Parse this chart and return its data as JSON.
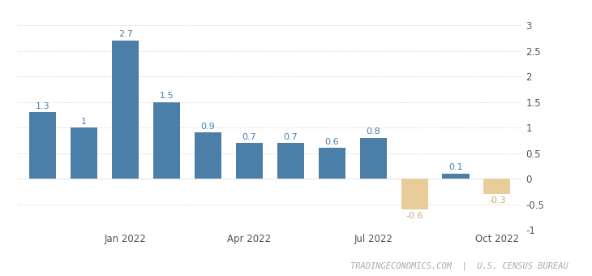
{
  "values": [
    1.3,
    1.0,
    2.7,
    1.5,
    0.9,
    0.7,
    0.7,
    0.6,
    0.8,
    -0.6,
    0.1,
    -0.3
  ],
  "bar_colors": [
    "#4c7fa8",
    "#4c7fa8",
    "#4c7fa8",
    "#4c7fa8",
    "#4c7fa8",
    "#4c7fa8",
    "#4c7fa8",
    "#4c7fa8",
    "#4c7fa8",
    "#e8cc99",
    "#4c7fa8",
    "#e8cc99"
  ],
  "x_tick_positions": [
    2,
    5,
    8,
    11
  ],
  "x_tick_labels": [
    "Jan 2022",
    "Apr 2022",
    "Jul 2022",
    "Oct 2022"
  ],
  "ylim": [
    -1.0,
    3.2
  ],
  "yticks": [
    -1.0,
    -0.5,
    0.0,
    0.5,
    1.0,
    1.5,
    2.0,
    2.5,
    3.0
  ],
  "ytick_labels": [
    "-1",
    "-0.5",
    "0",
    "0.5",
    "1",
    "1.5",
    "2",
    "2.5",
    "3"
  ],
  "label_color_blue": "#4c7fa8",
  "label_color_tan": "#c8a96e",
  "footer_text": "TRADINGECONOMICS.COM  |  U.S. CENSUS BUREAU",
  "footer_color": "#aaaaaa",
  "background_color": "#ffffff",
  "grid_color": "#cccccc",
  "bar_width": 0.65,
  "label_fontsize": 8,
  "tick_fontsize": 8.5,
  "footer_fontsize": 7.5
}
